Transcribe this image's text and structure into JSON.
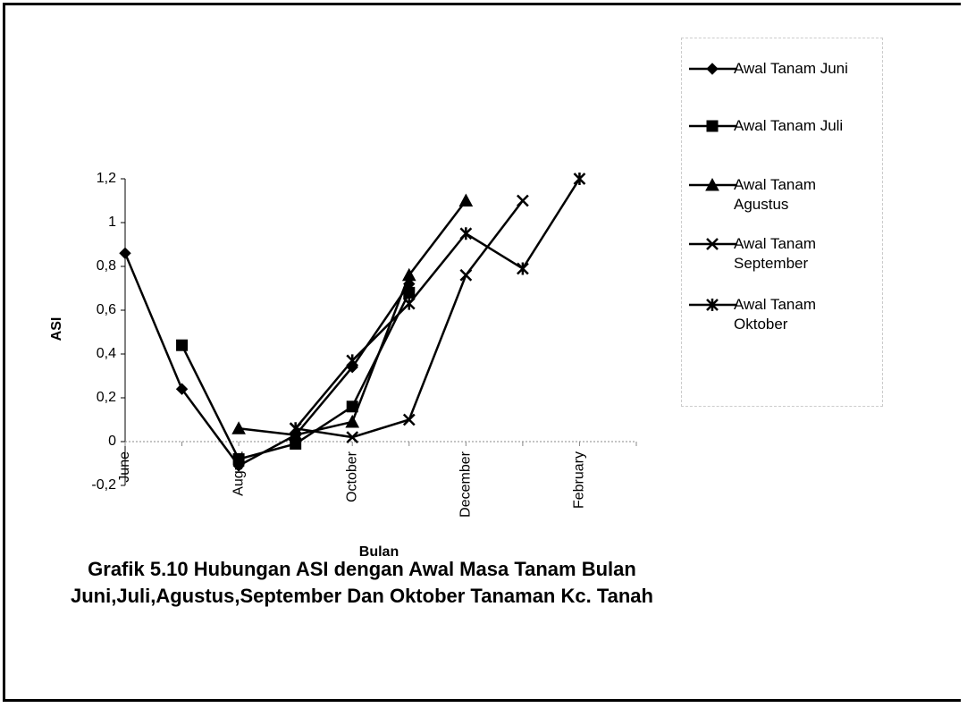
{
  "chart_data": {
    "type": "line",
    "title": "Grafik 5.10 Hubungan ASI dengan Awal Masa Tanam Bulan Juni,Juli,Agustus,September Dan Oktober Tanaman Kc. Tanah",
    "x_label": "Bulan",
    "y_label": "ASI",
    "categories": [
      "June",
      null,
      "August",
      null,
      "October",
      null,
      "December",
      null,
      "February",
      null
    ],
    "series": [
      {
        "name": "Awal Tanam Juni",
        "color": "#000000",
        "marker": "diamond",
        "values": [
          0.86,
          0.24,
          -0.11,
          0.03,
          0.34,
          0.72,
          null,
          null,
          null,
          null
        ]
      },
      {
        "name": "Awal Tanam Juli",
        "color": "#000000",
        "marker": "square",
        "values": [
          null,
          0.44,
          -0.08,
          -0.01,
          0.16,
          0.68,
          null,
          null,
          null,
          null
        ]
      },
      {
        "name": "Awal Tanam Agustus",
        "color": "#000000",
        "marker": "triangle",
        "values": [
          null,
          null,
          0.06,
          0.03,
          0.09,
          0.76,
          1.1,
          null,
          null,
          null
        ]
      },
      {
        "name": "Awal Tanam September",
        "color": "#000000",
        "marker": "x",
        "values": [
          null,
          null,
          null,
          0.06,
          0.02,
          0.1,
          0.76,
          1.1,
          null,
          null
        ]
      },
      {
        "name": "Awal Tanam Oktober",
        "color": "#000000",
        "marker": "asterisk",
        "values": [
          null,
          null,
          null,
          0.06,
          0.37,
          0.63,
          0.95,
          0.79,
          1.2,
          null
        ]
      }
    ],
    "ylim": [
      -0.2,
      1.2
    ],
    "yticks": [
      {
        "value": -0.2,
        "label": "-0,2"
      },
      0,
      {
        "value": 0.2,
        "label": "0,2"
      },
      {
        "value": 0.4,
        "label": "0,4"
      },
      {
        "value": 0.6,
        "label": "0,6"
      },
      {
        "value": 0.8,
        "label": "0,8"
      },
      1,
      {
        "value": 1.2,
        "label": "1,2"
      }
    ],
    "grid": false,
    "legend": "right"
  }
}
